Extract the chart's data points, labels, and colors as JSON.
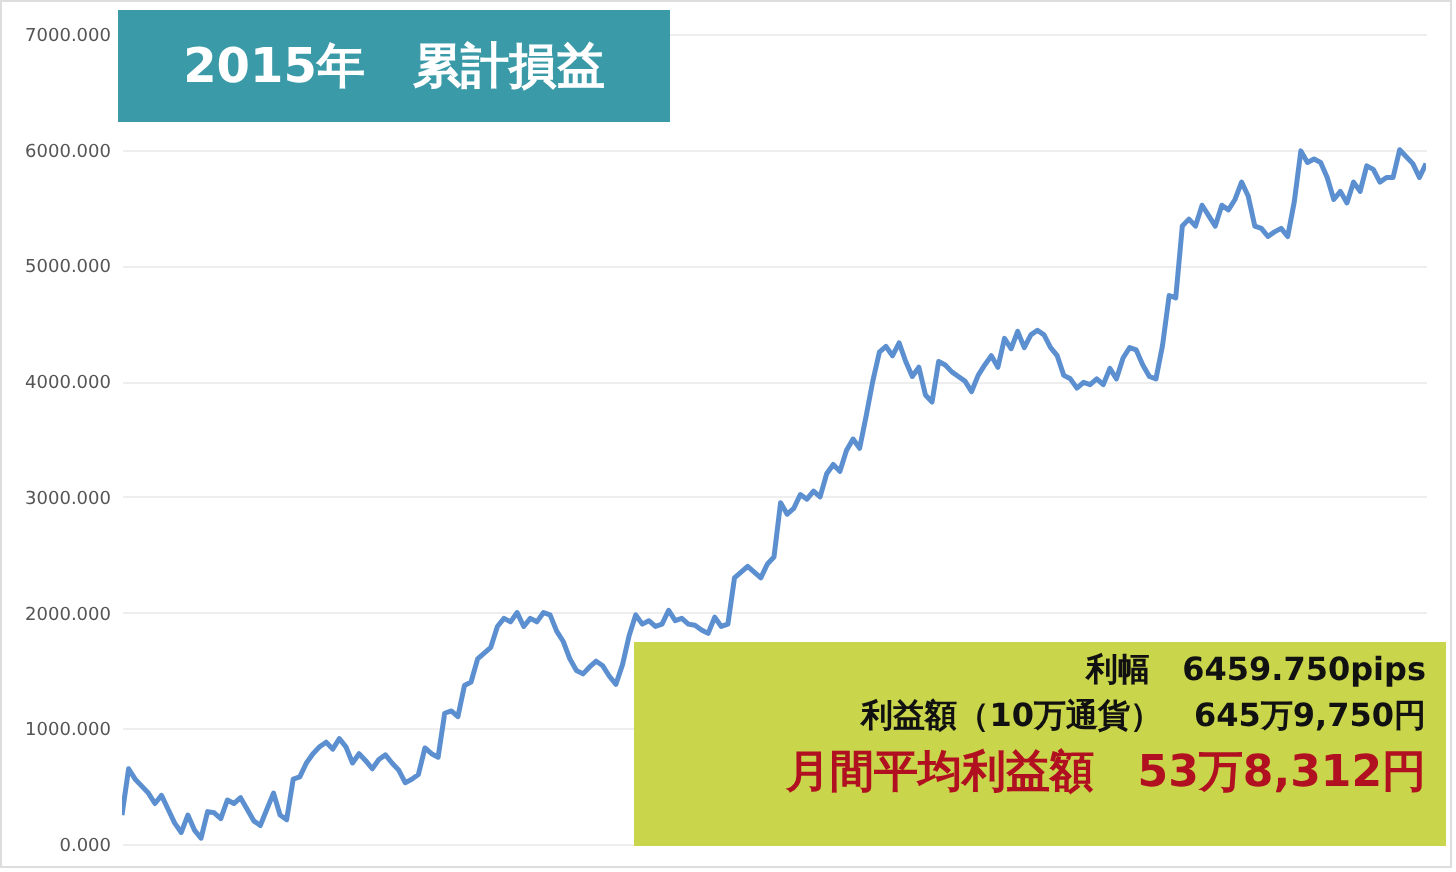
{
  "chart_data": {
    "type": "line",
    "title": "2015年　累計損益",
    "annotations": [
      "利幅　6459.750pips",
      "利益額（10万通貨）　645万9,750円",
      "月間平均利益額　53万8,312円"
    ],
    "categories": [
      null,
      null,
      null,
      null,
      null,
      null,
      null,
      null,
      null,
      null,
      null,
      null,
      null,
      null,
      null,
      null,
      null,
      null,
      null,
      null,
      null,
      null,
      null,
      null,
      null,
      null,
      null,
      null,
      null,
      null,
      null,
      null,
      null,
      null,
      null,
      null,
      null,
      null,
      null,
      null,
      null,
      null,
      null,
      null,
      null,
      null,
      null,
      null,
      null,
      null,
      null,
      null,
      null,
      null,
      null,
      null,
      null,
      null,
      null,
      null,
      null,
      null,
      null,
      null,
      null,
      null,
      null,
      null,
      null,
      null,
      null,
      null,
      null,
      null,
      null,
      null,
      null,
      null,
      null,
      null,
      null,
      null,
      null,
      null,
      null,
      null,
      null,
      null,
      null,
      null,
      null,
      null,
      null,
      null,
      null,
      null,
      null,
      null,
      null,
      null,
      null,
      null,
      null,
      null,
      null,
      null,
      null,
      null,
      null,
      null,
      null,
      null,
      null,
      null,
      null,
      null,
      null,
      null,
      null,
      null,
      null,
      null,
      null,
      null,
      null,
      null,
      null,
      null,
      null,
      null,
      null,
      null,
      null,
      null,
      null,
      null,
      null,
      null,
      null,
      null,
      null,
      null,
      null,
      null,
      null,
      null,
      null,
      null,
      null,
      null,
      null,
      null,
      null,
      null,
      null,
      null,
      null,
      null,
      null,
      null,
      null,
      null,
      null,
      null,
      null,
      null,
      null,
      null,
      null,
      null,
      null,
      null,
      null,
      null,
      null,
      null,
      null,
      null,
      null,
      null,
      null,
      null,
      null,
      null,
      null,
      null,
      null,
      null,
      null,
      null,
      null,
      null,
      null,
      null,
      null,
      null,
      null,
      null,
      null
    ],
    "series": [
      {
        "color": "#5b8fd0",
        "values": [
          250,
          650,
          560,
          500,
          440,
          350,
          420,
          300,
          180,
          100,
          250,
          120,
          50,
          280,
          270,
          220,
          380,
          350,
          400,
          300,
          200,
          160,
          300,
          440,
          250,
          210,
          560,
          580,
          700,
          780,
          840,
          880,
          820,
          910,
          840,
          700,
          780,
          720,
          650,
          730,
          770,
          700,
          640,
          530,
          560,
          600,
          830,
          780,
          750,
          1130,
          1150,
          1100,
          1370,
          1400,
          1600,
          1650,
          1700,
          1880,
          1950,
          1920,
          2000,
          1880,
          1950,
          1920,
          2000,
          1980,
          1840,
          1750,
          1600,
          1500,
          1470,
          1530,
          1580,
          1540,
          1450,
          1380,
          1550,
          1800,
          1980,
          1900,
          1930,
          1880,
          1900,
          2020,
          1930,
          1950,
          1900,
          1890,
          1850,
          1820,
          1960,
          1880,
          1900,
          2300,
          2350,
          2400,
          2350,
          2300,
          2420,
          2480,
          2950,
          2850,
          2900,
          3020,
          2980,
          3050,
          3000,
          3200,
          3280,
          3220,
          3400,
          3500,
          3420,
          3700,
          4000,
          4250,
          4300,
          4220,
          4330,
          4170,
          4040,
          4120,
          3880,
          3820,
          4170,
          4140,
          4080,
          4040,
          4000,
          3910,
          4050,
          4140,
          4220,
          4120,
          4370,
          4280,
          4430,
          4290,
          4400,
          4440,
          4400,
          4290,
          4220,
          4050,
          4020,
          3940,
          3990,
          3970,
          4020,
          3970,
          4110,
          4020,
          4200,
          4290,
          4270,
          4140,
          4040,
          4020,
          4310,
          4740,
          4720,
          5340,
          5400,
          5340,
          5520,
          5430,
          5340,
          5520,
          5480,
          5570,
          5720,
          5600,
          5340,
          5320,
          5250,
          5290,
          5320,
          5250,
          5550,
          5990,
          5890,
          5920,
          5890,
          5760,
          5570,
          5640,
          5540,
          5720,
          5640,
          5860,
          5830,
          5720,
          5760,
          5760,
          6000,
          5940,
          5880,
          5760,
          5880
        ]
      }
    ],
    "ylim": [
      0,
      7000
    ],
    "yticks": [
      {
        "value": 0,
        "label": "0.000"
      },
      {
        "value": 1000,
        "label": "1000.000"
      },
      {
        "value": 2000,
        "label": "2000.000"
      },
      {
        "value": 3000,
        "label": "3000.000"
      },
      {
        "value": 4000,
        "label": "4000.000"
      },
      {
        "value": 5000,
        "label": "5000.000"
      },
      {
        "value": 6000,
        "label": "6000.000"
      },
      {
        "value": 7000,
        "label": "7000.000"
      }
    ],
    "grid": "y",
    "tick_labels": "y"
  }
}
